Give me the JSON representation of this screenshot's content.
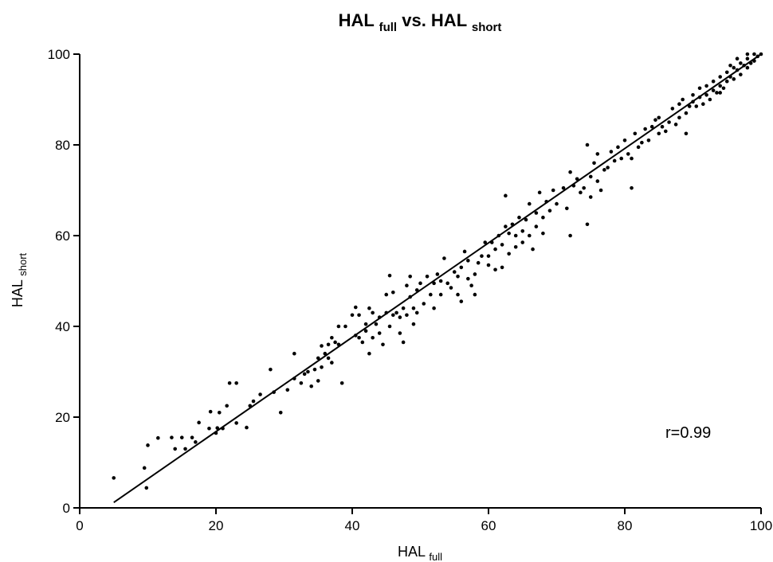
{
  "chart_data": {
    "type": "scatter",
    "title": {
      "main": "HAL",
      "main_sub": "full",
      "middle": " vs. HAL",
      "end_sub": "short"
    },
    "xlabel": {
      "main": "HAL",
      "sub": "full"
    },
    "ylabel": {
      "main": "HAL",
      "sub": "short"
    },
    "xlim": [
      0,
      100
    ],
    "ylim": [
      0,
      100
    ],
    "x_ticks": [
      0,
      20,
      40,
      60,
      80,
      100
    ],
    "y_ticks": [
      0,
      20,
      40,
      60,
      80,
      100
    ],
    "x_tick_labels": [
      "0",
      "20",
      "40",
      "60",
      "80",
      "100"
    ],
    "y_tick_labels": [
      "0",
      "20",
      "40",
      "60",
      "80",
      "100"
    ],
    "grid": false,
    "annotation": "r=0.99",
    "regression_line": {
      "x": [
        5,
        100
      ],
      "y": [
        1.2,
        100
      ]
    },
    "series": [
      {
        "points": [
          [
            5,
            6.6
          ],
          [
            9.5,
            8.8
          ],
          [
            9.8,
            4.4
          ],
          [
            10,
            13.8
          ],
          [
            11.5,
            15.4
          ],
          [
            13.5,
            15.5
          ],
          [
            14,
            13
          ],
          [
            15,
            15.5
          ],
          [
            15.5,
            13
          ],
          [
            16.5,
            15.5
          ],
          [
            17,
            14.5
          ],
          [
            17.5,
            18.8
          ],
          [
            19,
            17.5
          ],
          [
            19.2,
            21.2
          ],
          [
            20,
            16.5
          ],
          [
            20.2,
            17.6
          ],
          [
            20.5,
            21
          ],
          [
            21,
            17.5
          ],
          [
            21.6,
            22.5
          ],
          [
            22,
            27.5
          ],
          [
            23,
            18.7
          ],
          [
            23,
            27.5
          ],
          [
            24.5,
            17.7
          ],
          [
            25,
            22.5
          ],
          [
            25.5,
            23.5
          ],
          [
            26.5,
            25
          ],
          [
            28,
            30.5
          ],
          [
            28.5,
            25.5
          ],
          [
            29.5,
            21
          ],
          [
            30.5,
            26
          ],
          [
            31.5,
            34
          ],
          [
            31.5,
            28.5
          ],
          [
            32.5,
            27.5
          ],
          [
            33,
            29.5
          ],
          [
            33.5,
            30
          ],
          [
            34,
            26.8
          ],
          [
            34.5,
            30.5
          ],
          [
            35,
            28
          ],
          [
            35,
            33
          ],
          [
            35.5,
            35.7
          ],
          [
            35.5,
            31
          ],
          [
            36,
            34
          ],
          [
            36.5,
            33
          ],
          [
            36.5,
            36
          ],
          [
            37,
            37.5
          ],
          [
            37,
            32
          ],
          [
            37.5,
            36.5
          ],
          [
            38,
            36
          ],
          [
            38,
            40
          ],
          [
            38.5,
            27.5
          ],
          [
            39,
            40
          ],
          [
            40,
            42.5
          ],
          [
            40.5,
            44.2
          ],
          [
            40.5,
            38
          ],
          [
            41,
            37.5
          ],
          [
            41,
            42.5
          ],
          [
            41.5,
            36.5
          ],
          [
            42,
            39
          ],
          [
            42,
            40.5
          ],
          [
            42.5,
            34
          ],
          [
            42.5,
            44
          ],
          [
            43,
            37.5
          ],
          [
            43,
            43
          ],
          [
            43.5,
            40.5
          ],
          [
            44,
            42
          ],
          [
            44,
            38.5
          ],
          [
            44.5,
            36
          ],
          [
            45,
            47
          ],
          [
            45,
            43
          ],
          [
            45.5,
            40
          ],
          [
            45.5,
            51.2
          ],
          [
            46,
            42.5
          ],
          [
            46,
            47.5
          ],
          [
            46.5,
            43
          ],
          [
            47,
            42
          ],
          [
            47,
            38.5
          ],
          [
            47.5,
            44
          ],
          [
            47.5,
            36.5
          ],
          [
            48,
            49
          ],
          [
            48,
            42.5
          ],
          [
            48.5,
            46.5
          ],
          [
            48.5,
            51
          ],
          [
            49,
            44
          ],
          [
            49,
            40.5
          ],
          [
            49.5,
            48
          ],
          [
            49.5,
            43
          ],
          [
            50,
            49.5
          ],
          [
            50.5,
            45
          ],
          [
            51,
            51
          ],
          [
            51.5,
            47
          ],
          [
            52,
            49.5
          ],
          [
            52,
            44
          ],
          [
            52.5,
            51.5
          ],
          [
            53,
            50
          ],
          [
            53,
            47
          ],
          [
            53.5,
            55
          ],
          [
            54,
            49.5
          ],
          [
            54.5,
            48.5
          ],
          [
            55,
            52
          ],
          [
            55.5,
            51
          ],
          [
            55.5,
            47
          ],
          [
            56,
            53
          ],
          [
            56,
            45.5
          ],
          [
            56.5,
            56.5
          ],
          [
            57,
            50.5
          ],
          [
            57,
            54.5
          ],
          [
            57.5,
            49
          ],
          [
            58,
            51.5
          ],
          [
            58,
            47
          ],
          [
            58.5,
            54
          ],
          [
            59,
            55.5
          ],
          [
            59.5,
            58.5
          ],
          [
            60,
            55.5
          ],
          [
            60,
            53.5
          ],
          [
            60.5,
            58.5
          ],
          [
            61,
            57
          ],
          [
            61,
            52.5
          ],
          [
            61.5,
            60
          ],
          [
            62,
            58
          ],
          [
            62,
            53
          ],
          [
            62.5,
            62
          ],
          [
            62.5,
            68.8
          ],
          [
            63,
            56
          ],
          [
            63,
            60.5
          ],
          [
            63.5,
            62.5
          ],
          [
            64,
            60
          ],
          [
            64,
            57.5
          ],
          [
            64.5,
            64
          ],
          [
            65,
            58.5
          ],
          [
            65,
            61
          ],
          [
            65.5,
            63.5
          ],
          [
            66,
            60
          ],
          [
            66,
            67
          ],
          [
            66.5,
            57
          ],
          [
            67,
            65
          ],
          [
            67,
            62
          ],
          [
            67.5,
            69.5
          ],
          [
            68,
            64
          ],
          [
            68,
            60.5
          ],
          [
            68.5,
            67.5
          ],
          [
            69,
            65.5
          ],
          [
            69.5,
            70
          ],
          [
            70,
            67
          ],
          [
            71,
            70.5
          ],
          [
            71.5,
            66
          ],
          [
            72,
            60
          ],
          [
            72,
            74
          ],
          [
            72.5,
            71
          ],
          [
            73,
            72.5
          ],
          [
            73.5,
            69.5
          ],
          [
            74,
            70.5
          ],
          [
            74.5,
            80
          ],
          [
            74.5,
            62.5
          ],
          [
            75,
            73
          ],
          [
            75,
            68.5
          ],
          [
            75.5,
            76
          ],
          [
            76,
            72
          ],
          [
            76,
            78
          ],
          [
            76.5,
            70
          ],
          [
            77,
            74.5
          ],
          [
            77.5,
            75
          ],
          [
            78,
            78.5
          ],
          [
            78.5,
            76.5
          ],
          [
            79,
            79.5
          ],
          [
            79.5,
            77
          ],
          [
            80,
            81
          ],
          [
            80.5,
            78
          ],
          [
            81,
            77
          ],
          [
            81,
            70.5
          ],
          [
            81.5,
            82.5
          ],
          [
            82,
            79.5
          ],
          [
            82.5,
            80.5
          ],
          [
            83,
            83.5
          ],
          [
            83.5,
            81
          ],
          [
            84,
            84
          ],
          [
            84.5,
            85.5
          ],
          [
            85,
            82.5
          ],
          [
            85,
            86
          ],
          [
            85.5,
            84
          ],
          [
            86,
            83
          ],
          [
            86.5,
            85
          ],
          [
            87,
            88
          ],
          [
            87.5,
            84.5
          ],
          [
            88,
            86
          ],
          [
            88,
            89
          ],
          [
            88.5,
            90
          ],
          [
            89,
            87
          ],
          [
            89,
            82.5
          ],
          [
            89.5,
            88.5
          ],
          [
            90,
            89.5
          ],
          [
            90,
            91
          ],
          [
            90.5,
            88.5
          ],
          [
            91,
            90.5
          ],
          [
            91,
            92.5
          ],
          [
            91.5,
            89
          ],
          [
            92,
            91
          ],
          [
            92,
            93
          ],
          [
            92.5,
            90
          ],
          [
            93,
            92
          ],
          [
            93,
            94
          ],
          [
            93.5,
            91.5
          ],
          [
            94,
            93
          ],
          [
            94,
            95
          ],
          [
            94.5,
            92.5
          ],
          [
            95,
            94
          ],
          [
            95,
            96
          ],
          [
            95.5,
            95
          ],
          [
            96,
            97
          ],
          [
            96,
            94.5
          ],
          [
            96.5,
            96.5
          ],
          [
            97,
            98
          ],
          [
            97,
            95.5
          ],
          [
            97.5,
            97.5
          ],
          [
            98,
            99
          ],
          [
            98,
            97
          ],
          [
            98.5,
            98
          ],
          [
            99,
            100
          ],
          [
            99,
            98.5
          ],
          [
            99.5,
            99.5
          ],
          [
            100,
            100
          ],
          [
            96.5,
            99
          ],
          [
            98,
            100
          ],
          [
            95.5,
            97.5
          ],
          [
            94,
            91.5
          ]
        ]
      }
    ]
  }
}
